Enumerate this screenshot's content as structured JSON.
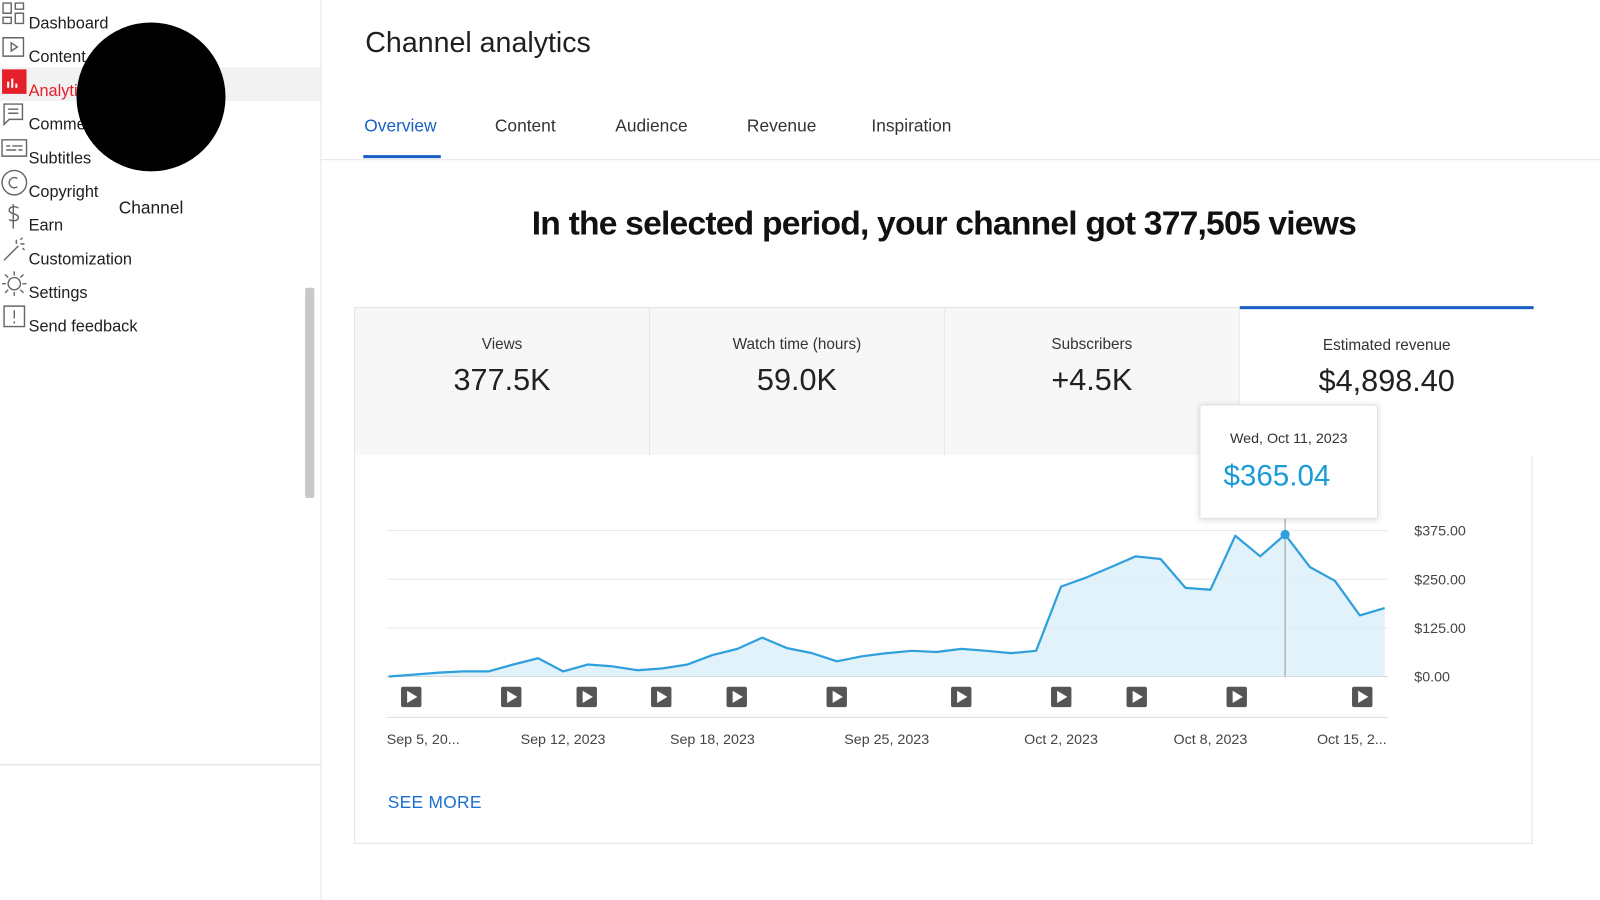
{
  "sidebar": {
    "channel_name": "Channel",
    "nav": [
      "Dashboard",
      "Content",
      "Analytics",
      "Comments",
      "Subtitles",
      "Copyright",
      "Earn",
      "Customization"
    ],
    "active_index": 2,
    "footer_nav": [
      "Settings",
      "Send feedback"
    ]
  },
  "header": {
    "title": "Channel analytics"
  },
  "tabs": {
    "items": [
      "Overview",
      "Content",
      "Audience",
      "Revenue",
      "Inspiration"
    ],
    "active_index": 0
  },
  "headline": "In the selected period, your channel got 377,505 views",
  "metrics": [
    {
      "label": "Views",
      "value": "377.5K"
    },
    {
      "label": "Watch time (hours)",
      "value": "59.0K"
    },
    {
      "label": "Subscribers",
      "value": "+4.5K"
    },
    {
      "label": "Estimated revenue",
      "value": "$4,898.40"
    }
  ],
  "selected_metric_index": 3,
  "see_more": "SEE MORE",
  "chart_data": {
    "type": "line",
    "color": "#2fa0dc",
    "area_color": "#d9eff9",
    "categories": [
      "Sep 5, 20...",
      null,
      null,
      null,
      null,
      null,
      null,
      "Sep 12, 2023",
      null,
      null,
      null,
      null,
      null,
      "Sep 18, 2023",
      null,
      null,
      null,
      null,
      null,
      null,
      "Sep 25, 2023",
      null,
      null,
      null,
      null,
      null,
      null,
      "Oct 2, 2023",
      null,
      null,
      null,
      null,
      null,
      "Oct 8, 2023",
      null,
      null,
      null,
      null,
      null,
      null,
      "Oct 15, 2..."
    ],
    "values": [
      0,
      5,
      10,
      13,
      13,
      31,
      47,
      13,
      31,
      26,
      16,
      21,
      31,
      55,
      71,
      100,
      73,
      60,
      39,
      52,
      60,
      66,
      63,
      71,
      66,
      60,
      66,
      231,
      254,
      281,
      309,
      302,
      228,
      223,
      362,
      309,
      365.04,
      281,
      246,
      157,
      176
    ],
    "value_labels": [
      null,
      null,
      null,
      null,
      null,
      null,
      null,
      null,
      null,
      null,
      null,
      null,
      null,
      null,
      null,
      null,
      null,
      null,
      null,
      null,
      null,
      null,
      null,
      null,
      null,
      null,
      null,
      null,
      null,
      null,
      null,
      null,
      null,
      null,
      null,
      null,
      "$365.04",
      null,
      null,
      null,
      null
    ],
    "tooltip_index": 36,
    "tooltip_date": "Wed, Oct 11, 2023",
    "ylim": [
      0,
      375
    ],
    "yticks": [
      {
        "value": 0,
        "label": "$0.00"
      },
      {
        "value": 125,
        "label": "$125.00"
      },
      {
        "value": 250,
        "label": "$250.00"
      },
      {
        "value": 375,
        "label": "$375.00"
      }
    ],
    "grid": true
  }
}
